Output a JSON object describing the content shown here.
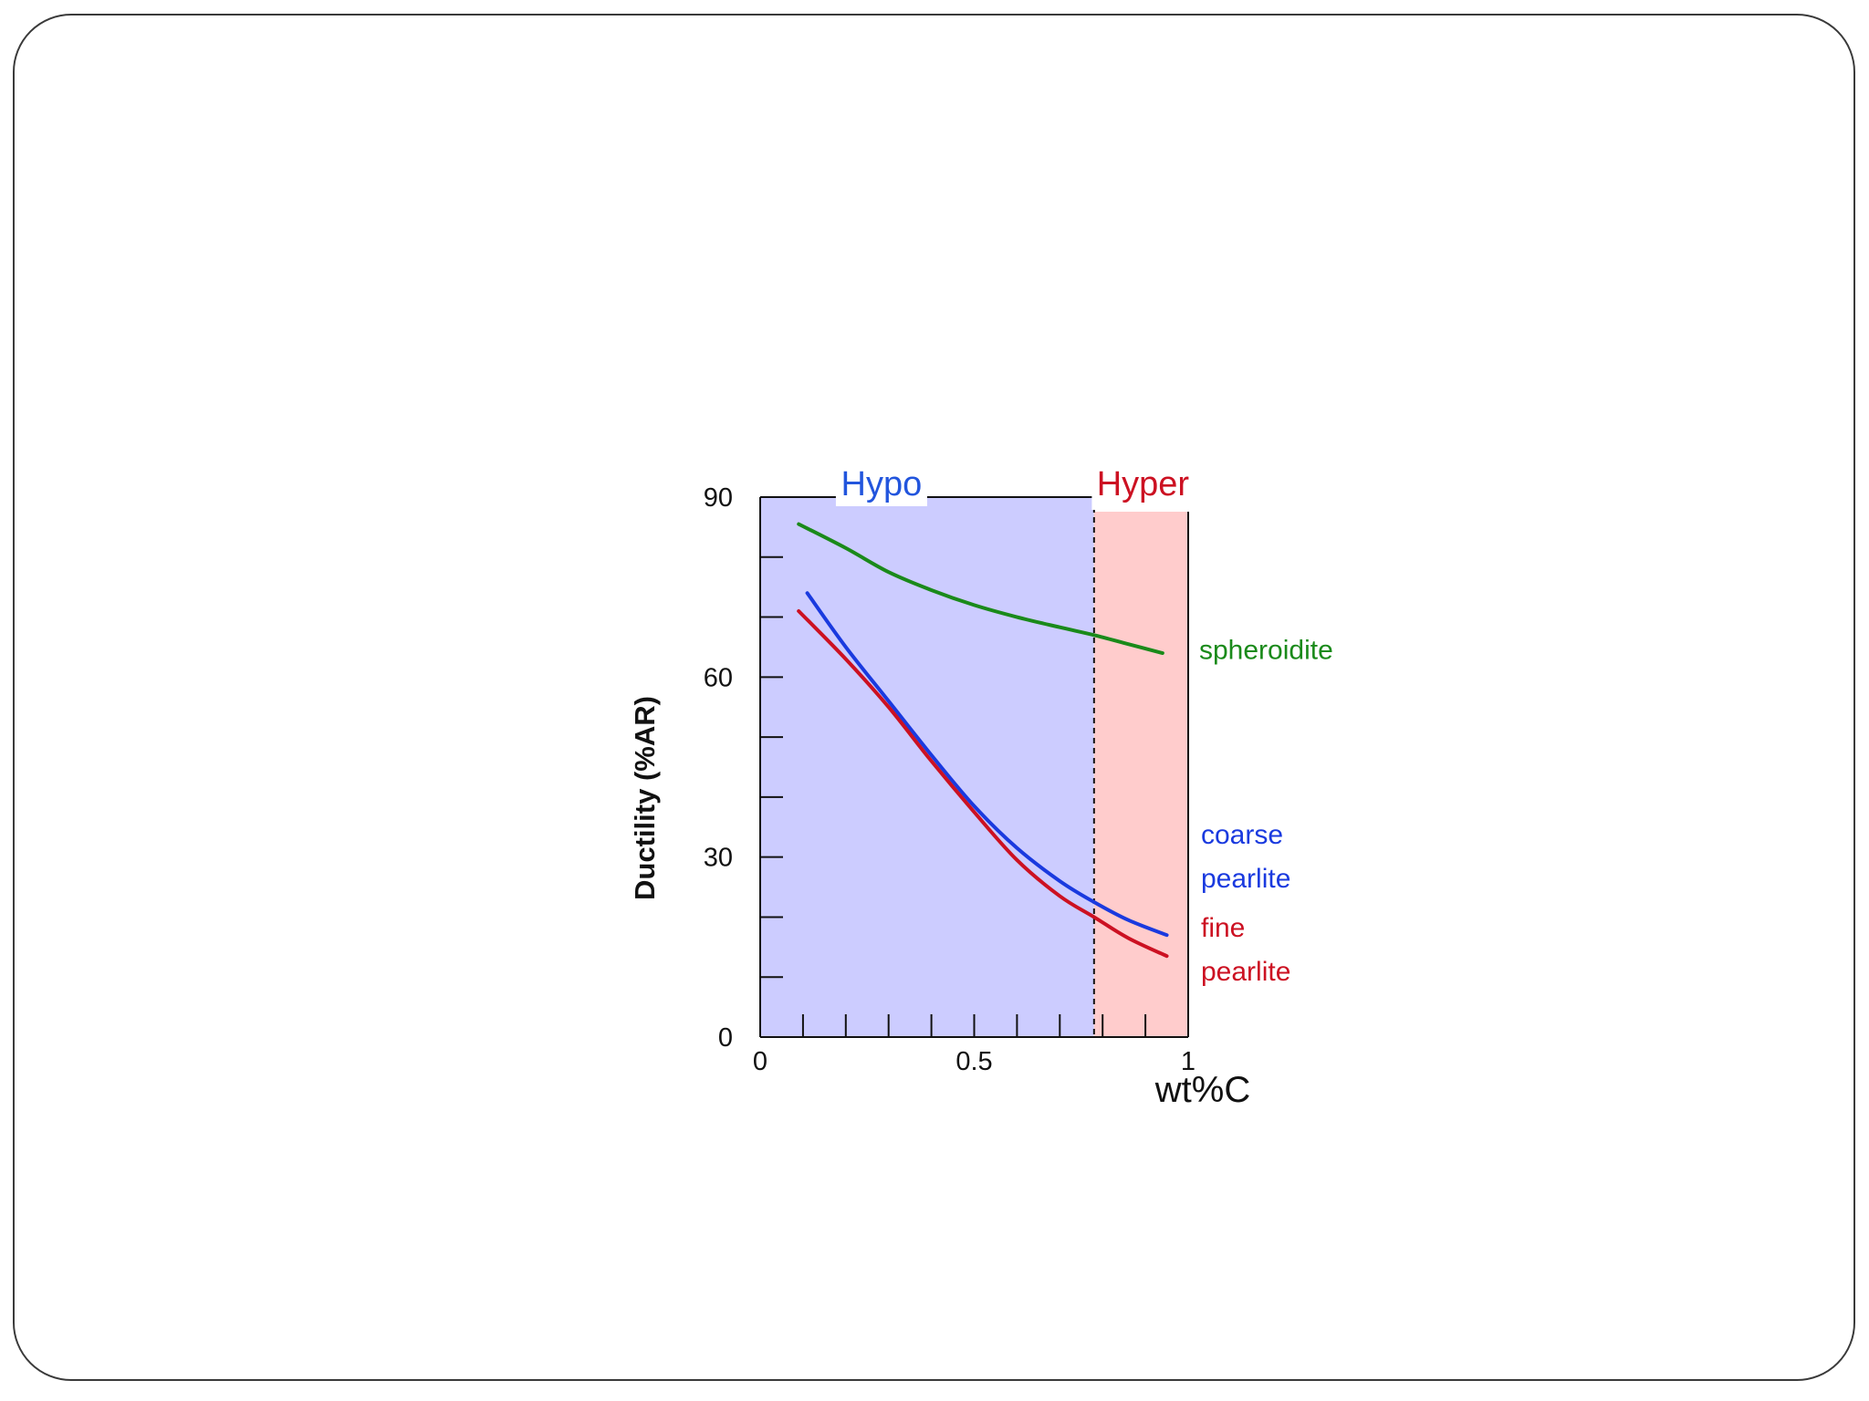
{
  "colors": {
    "hypo_region": "#ccccff",
    "hyper_region": "#ffcccc",
    "hypo_text": "#2255dd",
    "hyper_text": "#cc1122",
    "spheroidite": "#1a8a1a",
    "coarse_pearlite": "#1a3adf",
    "fine_pearlite": "#cc1122"
  },
  "chart_data": {
    "type": "line",
    "title": "",
    "xlabel": "wt%C",
    "ylabel": "Ductility (%AR)",
    "xlim": [
      0,
      1
    ],
    "ylim": [
      0,
      90
    ],
    "x_ticks": [
      0,
      0.5,
      1
    ],
    "x_tick_labels": [
      "0",
      "0.5",
      "1"
    ],
    "y_ticks": [
      0,
      30,
      60,
      90
    ],
    "y_tick_labels": [
      "0",
      "30",
      "60",
      "90"
    ],
    "eutectoid_wt_c": 0.78,
    "regions": [
      {
        "label": "Hypo",
        "x_start": 0,
        "x_end": 0.78
      },
      {
        "label": "Hyper",
        "x_start": 0.78,
        "x_end": 1
      }
    ],
    "series": [
      {
        "name": "spheroidite",
        "label_lines": [
          "spheroidite"
        ],
        "x": [
          0.09,
          0.2,
          0.3,
          0.4,
          0.5,
          0.6,
          0.7,
          0.78,
          0.86,
          0.94
        ],
        "y": [
          85.5,
          81.5,
          77.5,
          74.5,
          72,
          70,
          68.3,
          67,
          65.5,
          64
        ]
      },
      {
        "name": "coarse pearlite",
        "label_lines": [
          "coarse",
          "pearlite"
        ],
        "x": [
          0.11,
          0.2,
          0.3,
          0.4,
          0.5,
          0.6,
          0.7,
          0.78,
          0.86,
          0.95
        ],
        "y": [
          74,
          65,
          56,
          47,
          38.5,
          31.5,
          26,
          22.5,
          19.5,
          17
        ]
      },
      {
        "name": "fine pearlite",
        "label_lines": [
          "fine",
          "pearlite"
        ],
        "x": [
          0.09,
          0.2,
          0.3,
          0.4,
          0.5,
          0.6,
          0.7,
          0.78,
          0.86,
          0.95
        ],
        "y": [
          71,
          63,
          55,
          46,
          37.5,
          29.5,
          23.5,
          20,
          16.5,
          13.5
        ]
      }
    ]
  }
}
